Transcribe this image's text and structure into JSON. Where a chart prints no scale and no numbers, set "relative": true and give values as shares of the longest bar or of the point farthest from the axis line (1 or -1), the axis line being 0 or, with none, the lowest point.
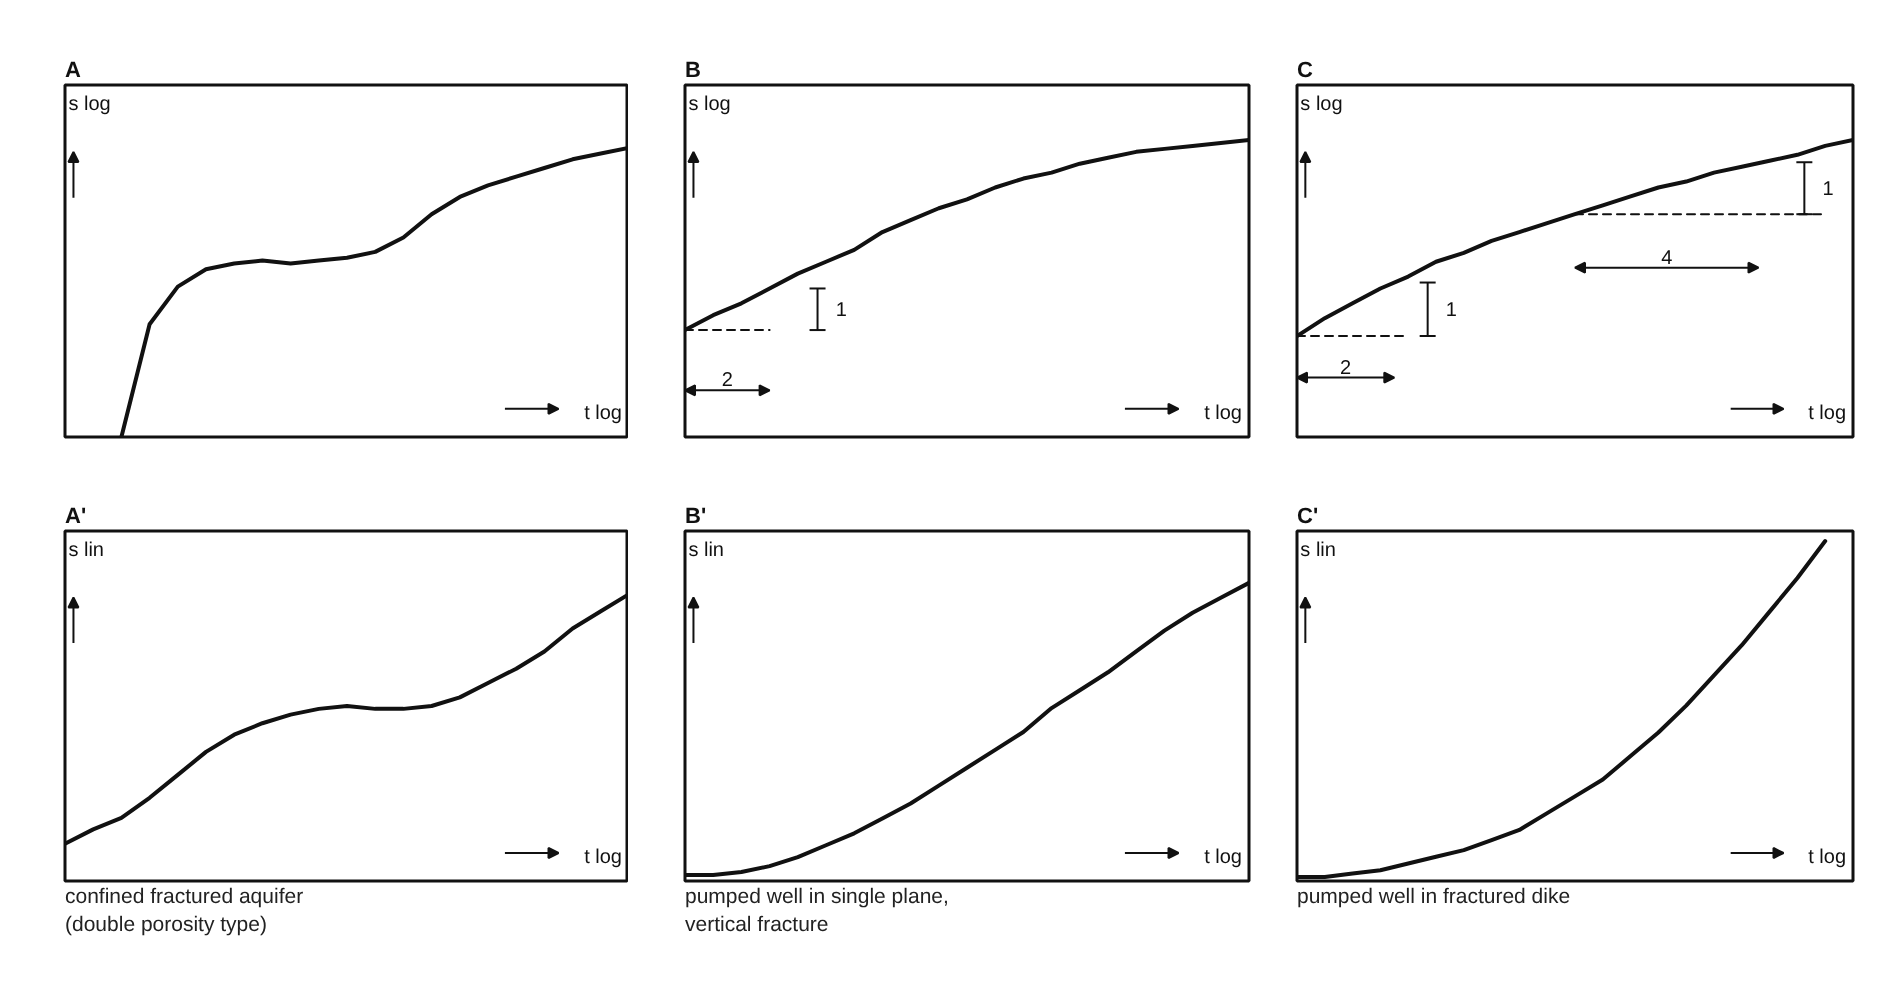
{
  "chart_data": [
    {
      "type": "line",
      "title": "A",
      "xlabel": "t log",
      "ylabel": "s log",
      "relative": true,
      "tick_labels": false,
      "color": "#111111",
      "categories": [
        null,
        null,
        null,
        null,
        null,
        null,
        null,
        null,
        null,
        null,
        null,
        null,
        null,
        null,
        null,
        null,
        null,
        null,
        null,
        null,
        null
      ],
      "values": [
        null,
        null,
        0,
        0.39,
        0.52,
        0.58,
        0.6,
        0.61,
        0.6,
        0.61,
        0.62,
        0.64,
        0.69,
        0.77,
        0.83,
        0.87,
        0.9,
        0.93,
        0.96,
        0.98,
        1.0
      ]
    },
    {
      "type": "line",
      "title": "B",
      "xlabel": "t log",
      "ylabel": "s log",
      "relative": true,
      "tick_labels": false,
      "categories": [
        null,
        null,
        null,
        null,
        null,
        null,
        null,
        null,
        null,
        null,
        null,
        null,
        null,
        null,
        null,
        null,
        null,
        null,
        null,
        null,
        null
      ],
      "series": [
        {
          "color": "#111111",
          "values": [
            0.36,
            0.41,
            0.45,
            0.5,
            0.55,
            0.59,
            0.63,
            0.69,
            0.73,
            0.77,
            0.8,
            0.84,
            0.87,
            0.89,
            0.92,
            0.94,
            0.96,
            0.97,
            0.98,
            0.99,
            1.0
          ]
        },
        {
          "type": "line",
          "line_style": "dashed",
          "color": "#111111",
          "values": [
            0.36,
            0.36,
            0.36,
            0.36,
            null,
            null,
            null,
            null,
            null,
            null,
            null,
            null,
            null,
            null,
            null,
            null,
            null,
            null,
            null,
            null,
            null
          ]
        }
      ],
      "annotations": [
        "2",
        "1"
      ]
    },
    {
      "type": "line",
      "title": "C",
      "xlabel": "t log",
      "ylabel": "s log",
      "relative": true,
      "tick_labels": false,
      "categories": [
        null,
        null,
        null,
        null,
        null,
        null,
        null,
        null,
        null,
        null,
        null,
        null,
        null,
        null,
        null,
        null,
        null,
        null,
        null,
        null,
        null
      ],
      "series": [
        {
          "color": "#111111",
          "values": [
            0.34,
            0.4,
            0.45,
            0.5,
            0.54,
            0.59,
            0.62,
            0.66,
            0.69,
            0.72,
            0.75,
            0.78,
            0.81,
            0.84,
            0.86,
            0.89,
            0.91,
            0.93,
            0.95,
            0.98,
            1.0
          ]
        },
        {
          "type": "line",
          "line_style": "dashed",
          "color": "#111111",
          "values": [
            0.34,
            0.34,
            0.34,
            0.34,
            0.34,
            null,
            null,
            null,
            null,
            null,
            null,
            null,
            null,
            null,
            null,
            null,
            null,
            null,
            null,
            null,
            null
          ]
        },
        {
          "type": "line",
          "line_style": "dashed",
          "color": "#111111",
          "values": [
            null,
            null,
            null,
            null,
            null,
            null,
            null,
            null,
            null,
            null,
            0.75,
            0.75,
            0.75,
            0.75,
            0.75,
            0.75,
            0.75,
            0.75,
            0.75,
            0.75,
            null
          ]
        }
      ],
      "annotations": [
        "2",
        "1",
        "4",
        "1"
      ]
    },
    {
      "type": "line",
      "title": "A'",
      "xlabel": "t log",
      "ylabel": "s lin",
      "relative": true,
      "tick_labels": false,
      "color": "#111111",
      "categories": [
        null,
        null,
        null,
        null,
        null,
        null,
        null,
        null,
        null,
        null,
        null,
        null,
        null,
        null,
        null,
        null,
        null,
        null,
        null,
        null,
        null
      ],
      "values": [
        0.13,
        0.18,
        0.22,
        0.29,
        0.37,
        0.45,
        0.51,
        0.55,
        0.58,
        0.6,
        0.61,
        0.6,
        0.6,
        0.61,
        0.64,
        0.69,
        0.74,
        0.8,
        0.88,
        0.94,
        1.0
      ],
      "annotations": [
        "confined fractured aquifer\n(double porosity type)"
      ]
    },
    {
      "type": "line",
      "title": "B'",
      "xlabel": "t log",
      "ylabel": "s lin",
      "relative": true,
      "tick_labels": false,
      "color": "#111111",
      "categories": [
        null,
        null,
        null,
        null,
        null,
        null,
        null,
        null,
        null,
        null,
        null,
        null,
        null,
        null,
        null,
        null,
        null,
        null,
        null,
        null,
        null
      ],
      "values": [
        0.02,
        0.02,
        0.03,
        0.05,
        0.08,
        0.12,
        0.16,
        0.21,
        0.26,
        0.32,
        0.38,
        0.44,
        0.5,
        0.58,
        0.64,
        0.7,
        0.77,
        0.84,
        0.9,
        0.95,
        1.0
      ],
      "annotations": [
        "pumped well in single plane,\nvertical fracture"
      ]
    },
    {
      "type": "line",
      "title": "C'",
      "xlabel": "t log",
      "ylabel": "s lin",
      "relative": true,
      "tick_labels": false,
      "color": "#111111",
      "categories": [
        null,
        null,
        null,
        null,
        null,
        null,
        null,
        null,
        null,
        null,
        null,
        null,
        null,
        null,
        null,
        null,
        null,
        null,
        null,
        null,
        null
      ],
      "values": [
        0,
        0,
        0.01,
        0.02,
        0.04,
        0.06,
        0.08,
        0.11,
        0.14,
        0.19,
        0.24,
        0.29,
        0.36,
        0.43,
        0.51,
        0.6,
        0.69,
        0.79,
        0.89,
        1.0,
        null
      ],
      "annotations": [
        "pumped well in fractured dike"
      ]
    }
  ]
}
